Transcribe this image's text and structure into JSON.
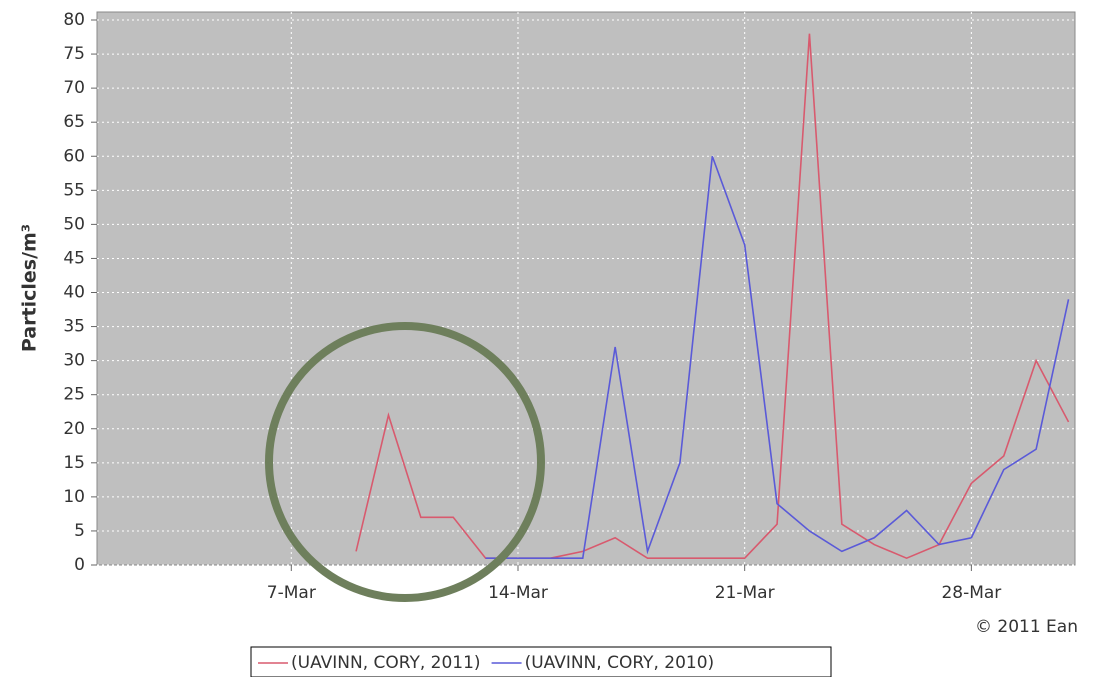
{
  "chart_data": {
    "type": "line",
    "y_label": "Particles/m³",
    "annotation": "© 2011 Ean",
    "x": [
      9,
      10,
      11,
      12,
      13,
      14,
      15,
      16,
      17,
      18,
      19,
      20,
      21,
      22,
      23,
      24,
      25,
      26,
      27,
      28,
      29,
      30,
      31
    ],
    "series": [
      {
        "name": "(UAVINN, CORY, 2011)",
        "color": "#d85a6e",
        "values": [
          2,
          22,
          7,
          7,
          1,
          1,
          1,
          2,
          4,
          1,
          1,
          1,
          1,
          6,
          78,
          6,
          3,
          1,
          3,
          12,
          16,
          30,
          21
        ]
      },
      {
        "name": "(UAVINN, CORY, 2010)",
        "color": "#5a5ad8",
        "values": [
          null,
          null,
          null,
          null,
          1,
          1,
          1,
          1,
          32,
          2,
          15,
          60,
          47,
          9,
          5,
          2,
          4,
          8,
          3,
          4,
          14,
          17,
          39
        ]
      }
    ],
    "xlim": [
      1,
      31.2
    ],
    "xticks": [
      {
        "value": 7,
        "label": "7-Mar"
      },
      {
        "value": 14,
        "label": "14-Mar"
      },
      {
        "value": 21,
        "label": "21-Mar"
      },
      {
        "value": 28,
        "label": "28-Mar"
      }
    ],
    "ylim": [
      0,
      80
    ],
    "yticks": [
      0,
      5,
      10,
      15,
      20,
      25,
      30,
      35,
      40,
      45,
      50,
      55,
      60,
      65,
      70,
      75,
      80
    ],
    "grid": true,
    "legend": "bottom"
  }
}
